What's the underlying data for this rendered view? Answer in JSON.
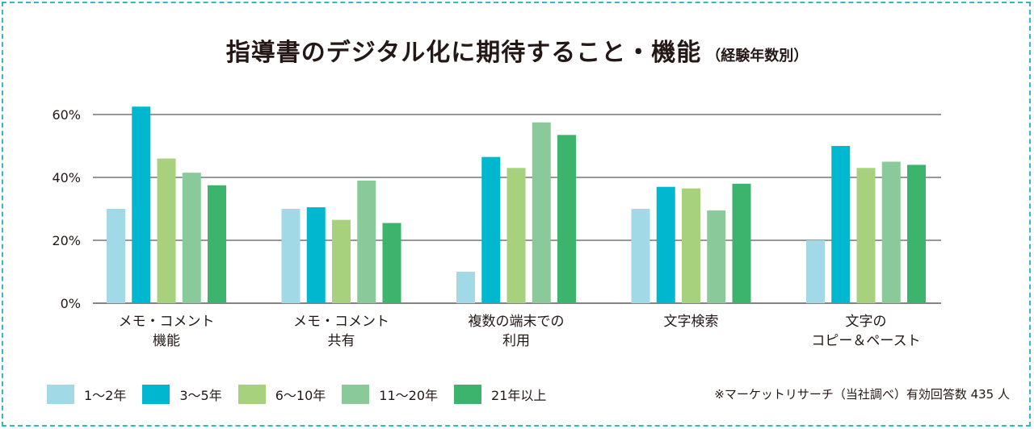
{
  "title": "指導書のデジタル化に期待すること・機能",
  "subtitle": "（経験年数別）",
  "note": "※マーケットリサーチ（当社調べ）有効回答数 435 人",
  "colors": {
    "frame": "#37b6c9",
    "gridline": "#5a5a5a",
    "series": [
      "#a2d9e7",
      "#00b7d0",
      "#a8d17e",
      "#8ac99a",
      "#3db46d"
    ]
  },
  "chart_data": {
    "type": "bar",
    "categories": [
      [
        "メモ・コメント",
        "機能"
      ],
      [
        "メモ・コメント",
        "共有"
      ],
      [
        "複数の端末での",
        "利用"
      ],
      [
        "文字検索"
      ],
      [
        "文字の",
        "コピー＆ペースト"
      ]
    ],
    "series": [
      {
        "name": "1～2年",
        "values": [
          30,
          30,
          10,
          30,
          20
        ]
      },
      {
        "name": "3～5年",
        "values": [
          62.5,
          30.5,
          46.5,
          37,
          50
        ]
      },
      {
        "name": "6～10年",
        "values": [
          46,
          26.5,
          43,
          36.5,
          43
        ]
      },
      {
        "name": "11～20年",
        "values": [
          41.5,
          39,
          57.5,
          29.5,
          45
        ]
      },
      {
        "name": "21年以上",
        "values": [
          37.5,
          25.5,
          53.5,
          38,
          44
        ]
      }
    ],
    "y_ticks": [
      "0%",
      "20%",
      "40%",
      "60%"
    ],
    "y_tick_values": [
      0,
      20,
      40,
      60
    ],
    "ylim": [
      0,
      60
    ],
    "grid": true,
    "legend_position": "bottom"
  }
}
